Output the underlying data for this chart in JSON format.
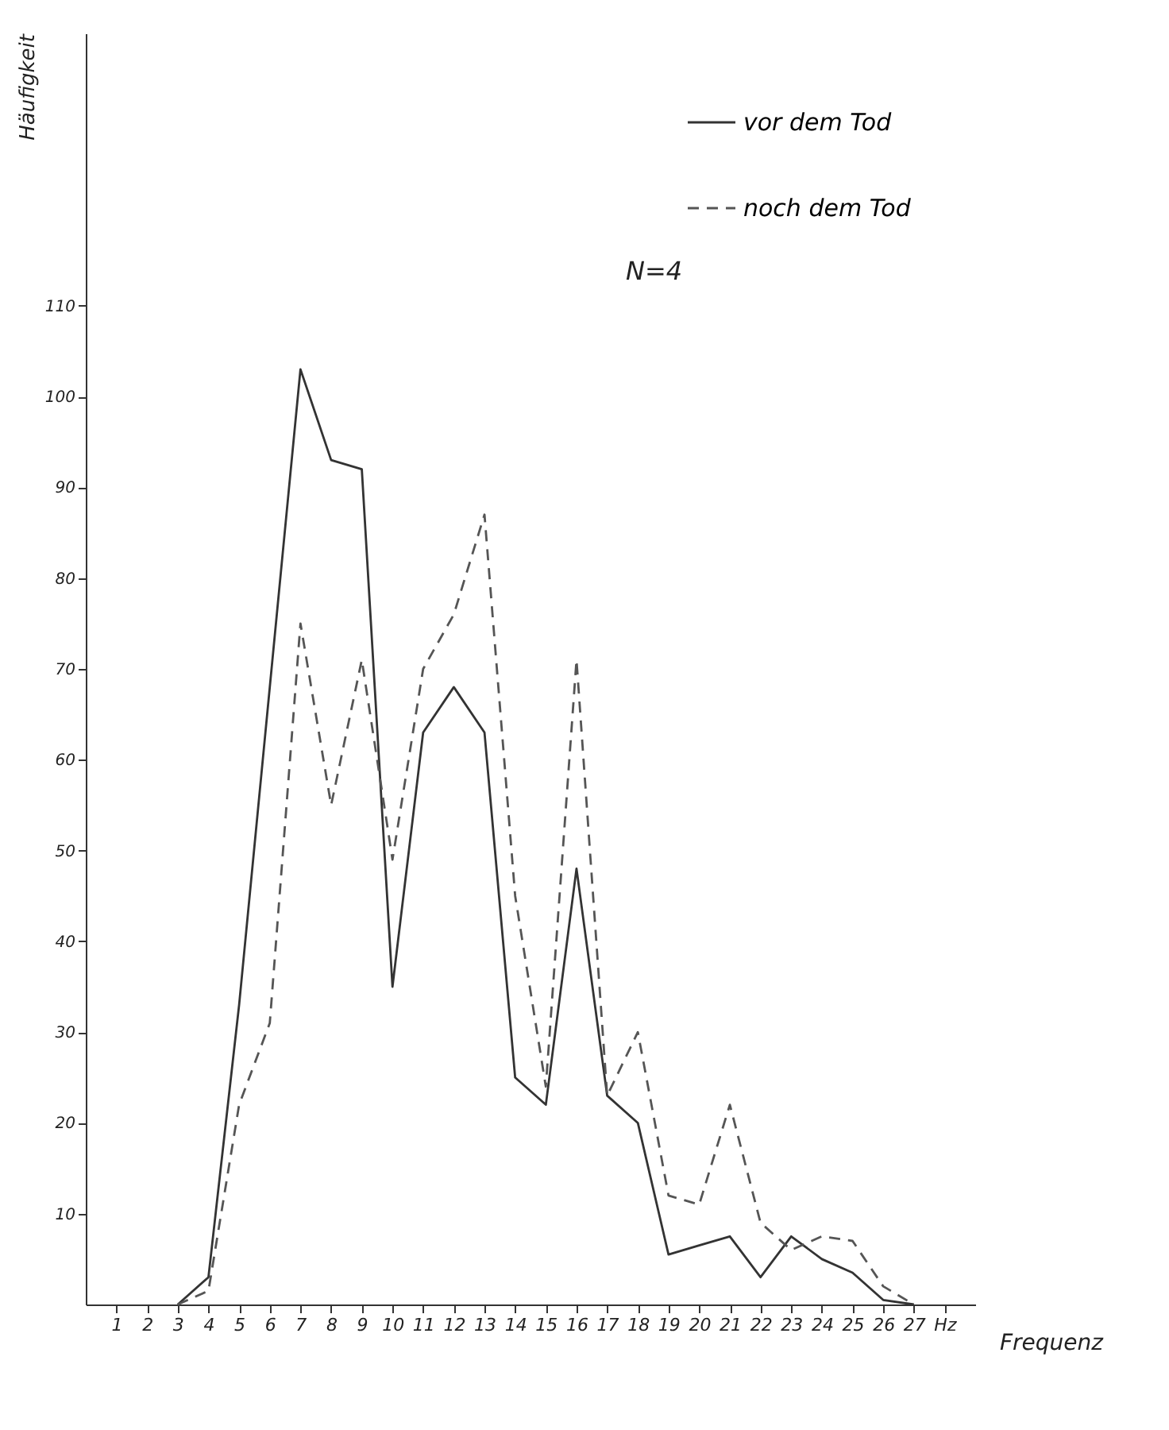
{
  "chart_data": {
    "type": "line",
    "xlabel": "Frequenz",
    "ylabel": "Häufigkeit",
    "x": [
      3,
      4,
      5,
      6,
      7,
      8,
      9,
      10,
      11,
      12,
      13,
      14,
      15,
      16,
      17,
      18,
      19,
      20,
      21,
      22,
      23,
      24,
      25,
      26,
      27
    ],
    "series": [
      {
        "name": "vor dem Tod",
        "color": "#333333",
        "line_style": "solid",
        "values": [
          0,
          3,
          33,
          68,
          103,
          93,
          92,
          35,
          63,
          68,
          63,
          25,
          22,
          48,
          23,
          20,
          5.5,
          6.5,
          7.5,
          3,
          7.5,
          5,
          3.5,
          0.5,
          0
        ]
      },
      {
        "name": "noch dem Tod",
        "color": "#555555",
        "line_style": "dashed",
        "values": [
          0,
          1.5,
          22,
          31,
          75,
          55,
          71,
          49,
          70,
          76,
          87,
          45,
          24,
          71,
          23,
          30,
          12,
          11,
          22,
          9,
          6,
          7.5,
          7,
          2,
          0
        ]
      }
    ],
    "xlim": [
      0,
      29
    ],
    "ylim": [
      0,
      140
    ],
    "xticks": [
      1,
      2,
      3,
      4,
      5,
      6,
      7,
      8,
      9,
      10,
      11,
      12,
      13,
      14,
      15,
      16,
      17,
      18,
      19,
      20,
      21,
      22,
      23,
      24,
      25,
      26,
      27,
      {
        "value": 28,
        "label": "Hz"
      }
    ],
    "yticks": [
      10,
      20,
      30,
      40,
      50,
      60,
      70,
      80,
      90,
      100,
      110
    ],
    "legend": "top right",
    "grid": false,
    "marker": "none",
    "annotations": [
      "N=4"
    ]
  }
}
